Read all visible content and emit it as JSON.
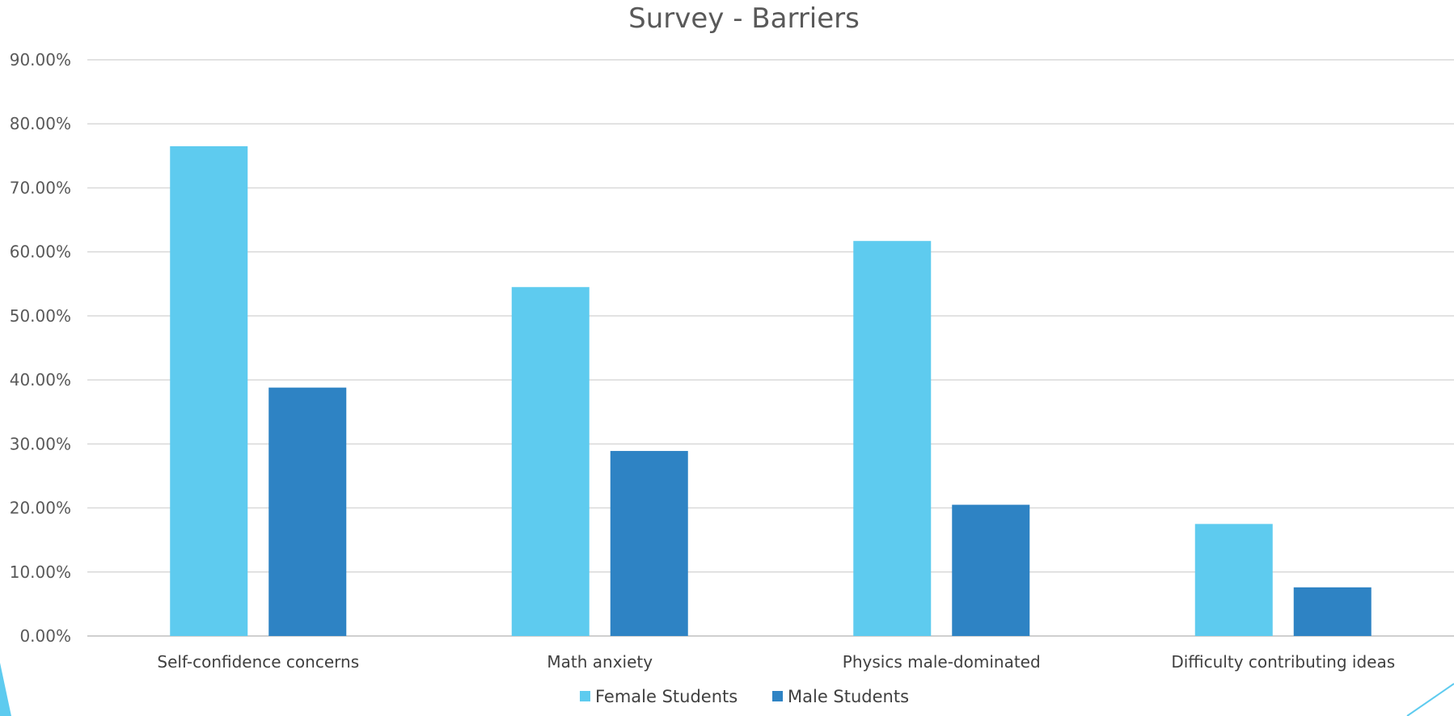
{
  "chart_data": {
    "type": "bar",
    "title": "Survey - Barriers",
    "xlabel": "",
    "ylabel": "",
    "ylim": [
      0,
      0.9
    ],
    "ytick_step": 0.1,
    "ytick_labels": [
      "0.00%",
      "10.00%",
      "20.00%",
      "30.00%",
      "40.00%",
      "50.00%",
      "60.00%",
      "70.00%",
      "80.00%",
      "90.00%"
    ],
    "categories": [
      "Self-confidence concerns",
      "Math anxiety",
      "Physics male-dominated",
      "Difficulty contributing ideas"
    ],
    "series": [
      {
        "name": "Female Students",
        "color": "#5ecbef",
        "values": [
          0.765,
          0.545,
          0.617,
          0.175
        ]
      },
      {
        "name": "Male Students",
        "color": "#2e83c4",
        "values": [
          0.388,
          0.289,
          0.205,
          0.076
        ]
      }
    ],
    "grid": true,
    "legend_position": "bottom"
  }
}
